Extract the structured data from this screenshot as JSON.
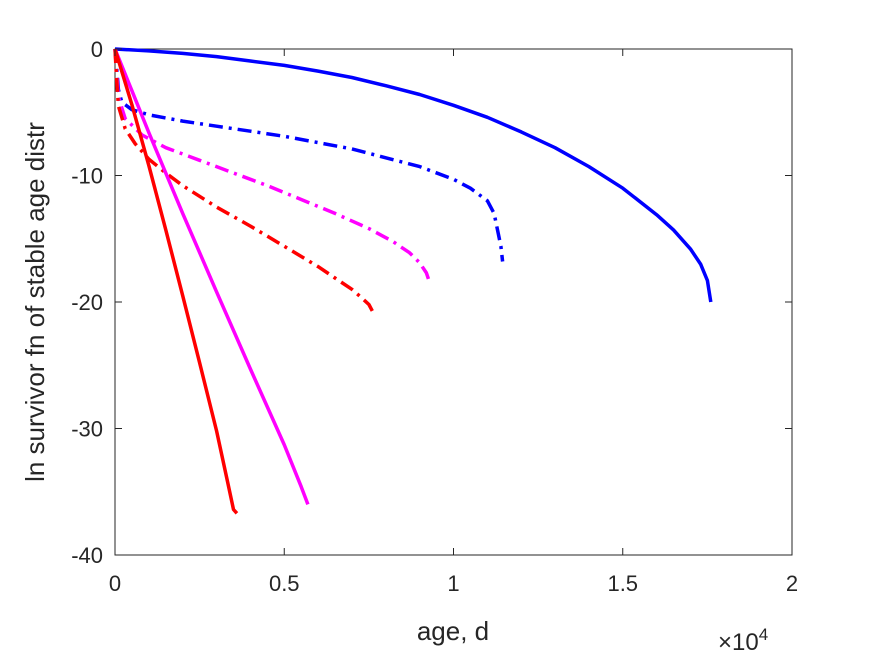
{
  "chart_data": {
    "type": "line",
    "title": "",
    "xlabel": "age, d",
    "ylabel": "ln survivor fn of stable age distr",
    "x_multiplier_label": {
      "base": "×10",
      "exponent": "4"
    },
    "xlim": [
      0,
      2
    ],
    "ylim": [
      -40,
      0
    ],
    "x_ticks": [
      0,
      0.5,
      1,
      1.5,
      2
    ],
    "x_tick_labels": [
      "0",
      "0.5",
      "1",
      "1.5",
      "2"
    ],
    "y_ticks": [
      0,
      -10,
      -20,
      -30,
      -40
    ],
    "y_tick_labels": [
      "0",
      "-10",
      "-20",
      "-30",
      "-40"
    ],
    "grid": false,
    "series": [
      {
        "color": "#0000ff",
        "dash": "solid",
        "x": [
          0,
          0.1,
          0.2,
          0.3,
          0.4,
          0.5,
          0.6,
          0.7,
          0.8,
          0.9,
          1.0,
          1.1,
          1.2,
          1.3,
          1.4,
          1.5,
          1.6,
          1.65,
          1.7,
          1.73,
          1.75,
          1.76
        ],
        "y": [
          0,
          -0.15,
          -0.35,
          -0.6,
          -0.95,
          -1.3,
          -1.75,
          -2.25,
          -2.9,
          -3.6,
          -4.45,
          -5.4,
          -6.55,
          -7.8,
          -9.3,
          -11.0,
          -13.1,
          -14.3,
          -15.8,
          -17.0,
          -18.3,
          -20.0
        ]
      },
      {
        "color": "#0000ff",
        "dash": "dashdot",
        "x": [
          0,
          0.005,
          0.01,
          0.02,
          0.05,
          0.1,
          0.2,
          0.3,
          0.4,
          0.5,
          0.6,
          0.7,
          0.8,
          0.9,
          1.0,
          1.05,
          1.1,
          1.12,
          1.13,
          1.14,
          1.145
        ],
        "y": [
          0,
          -1.5,
          -3.2,
          -4.2,
          -4.8,
          -5.2,
          -5.7,
          -6.1,
          -6.5,
          -6.9,
          -7.4,
          -7.9,
          -8.6,
          -9.3,
          -10.3,
          -11.0,
          -12.0,
          -13.0,
          -14.3,
          -15.6,
          -16.8
        ]
      },
      {
        "color": "#ff00ff",
        "dash": "dashdot",
        "x": [
          0,
          0.005,
          0.01,
          0.03,
          0.08,
          0.15,
          0.25,
          0.35,
          0.45,
          0.55,
          0.65,
          0.75,
          0.82,
          0.87,
          0.9,
          0.92,
          0.93
        ],
        "y": [
          0,
          -2.0,
          -3.8,
          -5.5,
          -6.8,
          -7.8,
          -8.8,
          -9.8,
          -10.8,
          -11.9,
          -13.0,
          -14.2,
          -15.2,
          -16.1,
          -16.9,
          -17.7,
          -18.5
        ]
      },
      {
        "color": "#ff0000",
        "dash": "dashdot",
        "x": [
          0,
          0.005,
          0.01,
          0.03,
          0.06,
          0.1,
          0.15,
          0.2,
          0.3,
          0.4,
          0.5,
          0.6,
          0.65,
          0.7,
          0.73,
          0.75,
          0.76
        ],
        "y": [
          0,
          -2.5,
          -4.5,
          -6.3,
          -7.5,
          -8.7,
          -9.8,
          -10.8,
          -12.5,
          -14.0,
          -15.6,
          -17.2,
          -18.1,
          -19.0,
          -19.7,
          -20.2,
          -20.7
        ]
      },
      {
        "color": "#ff00ff",
        "dash": "solid",
        "x": [
          0,
          0.05,
          0.1,
          0.2,
          0.3,
          0.4,
          0.5,
          0.55,
          0.57
        ],
        "y": [
          0,
          -3.3,
          -6.6,
          -13.0,
          -19.2,
          -25.3,
          -31.3,
          -34.6,
          -36.0
        ]
      },
      {
        "color": "#ff0000",
        "dash": "solid",
        "x": [
          0,
          0.05,
          0.1,
          0.15,
          0.2,
          0.25,
          0.3,
          0.33,
          0.35,
          0.36
        ],
        "y": [
          0,
          -4.4,
          -9.2,
          -14.3,
          -19.5,
          -24.8,
          -30.2,
          -33.9,
          -36.4,
          -36.7
        ]
      }
    ]
  }
}
